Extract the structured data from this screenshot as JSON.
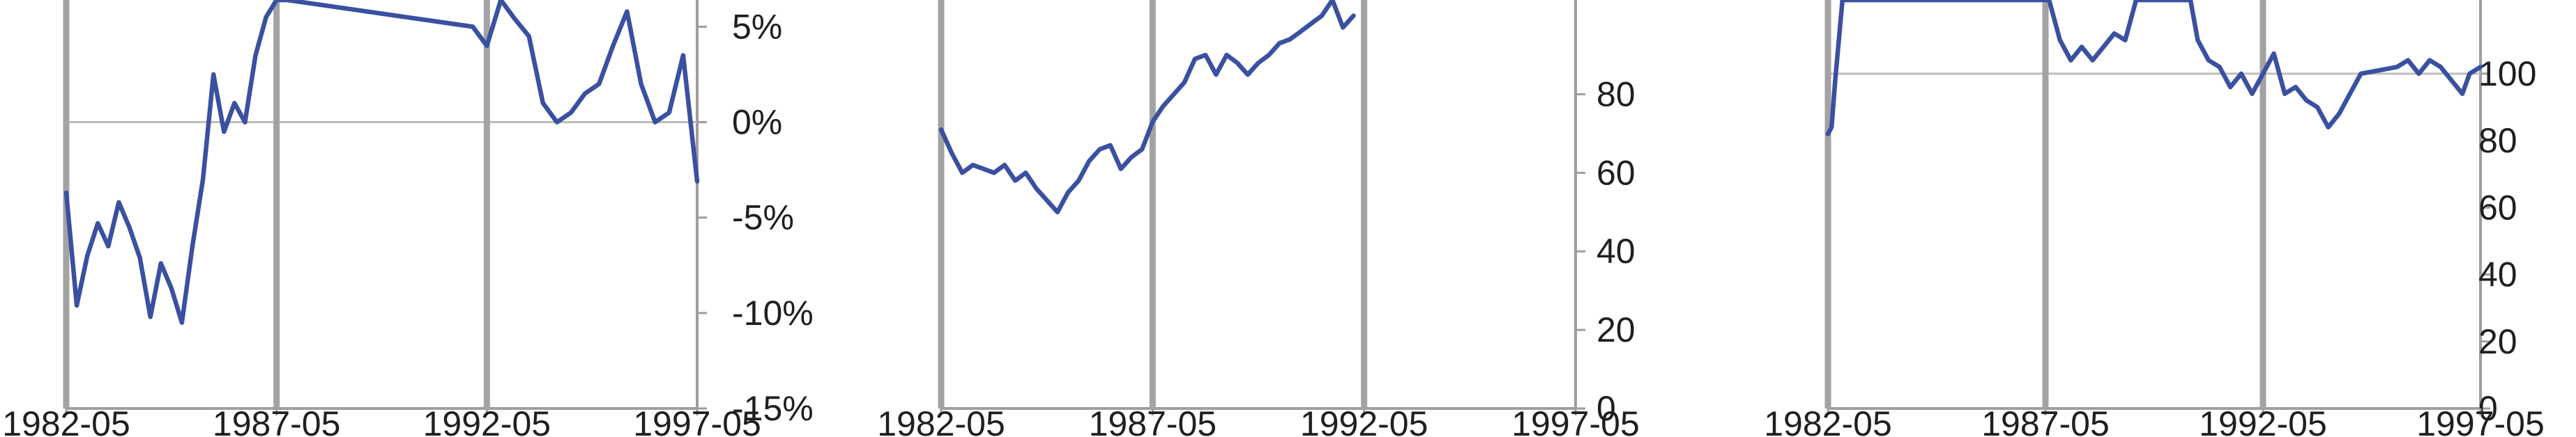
{
  "chart_data": [
    {
      "type": "line",
      "title": "",
      "xlabel": "",
      "ylabel": "",
      "x_ticks": [
        "1982-05",
        "1987-05",
        "1992-05",
        "1997-05"
      ],
      "x_range": [
        "1982-05",
        "1997-05"
      ],
      "y_axis_side": "right",
      "y_ticks": [
        -15,
        -10,
        -5,
        0,
        5
      ],
      "y_tick_labels": [
        "-15%",
        "-10%",
        "-5%",
        "0%",
        "5%"
      ],
      "ylim": [
        -15,
        6.4
      ],
      "grid": "horizontal line at 0%",
      "event_lines": [
        "1982-05",
        "1987-05",
        "1992-05"
      ],
      "series": [
        {
          "color": "#3a50a0",
          "x": [
            "1982-05",
            "1982-08",
            "1982-11",
            "1983-02",
            "1983-05",
            "1983-08",
            "1983-11",
            "1984-02",
            "1984-05",
            "1984-08",
            "1984-11",
            "1985-02",
            "1985-05",
            "1985-08",
            "1985-11",
            "1986-02",
            "1986-05",
            "1986-08",
            "1986-11",
            "1987-02",
            "1987-05",
            "1987-08",
            "1992-01",
            "1992-05",
            "1992-09",
            "1993-01",
            "1993-05",
            "1993-09",
            "1994-01",
            "1994-05",
            "1994-09",
            "1995-01",
            "1995-05",
            "1995-09",
            "1996-01",
            "1996-05",
            "1996-09",
            "1997-01",
            "1997-05"
          ],
          "y": [
            -3.7,
            -9.6,
            -7.0,
            -5.3,
            -6.5,
            -4.2,
            -5.5,
            -7.1,
            -10.2,
            -7.4,
            -8.7,
            -10.5,
            -6.5,
            -3.0,
            2.5,
            -0.5,
            1.0,
            0.0,
            3.5,
            5.5,
            6.4,
            6.4,
            5.0,
            4.0,
            6.4,
            5.4,
            4.5,
            1.0,
            0.0,
            0.5,
            1.5,
            2.0,
            4.0,
            5.8,
            2.0,
            0.0,
            0.5,
            3.5,
            -3.1
          ]
        }
      ]
    },
    {
      "type": "line",
      "title": "",
      "xlabel": "",
      "ylabel": "",
      "x_ticks": [
        "1982-05",
        "1987-05",
        "1992-05",
        "1997-05"
      ],
      "x_range": [
        "1982-05",
        "1997-05"
      ],
      "y_axis_side": "right",
      "y_ticks": [
        0,
        20,
        40,
        60,
        80
      ],
      "y_tick_labels": [
        "0",
        "20",
        "40",
        "60",
        "80"
      ],
      "ylim": [
        0,
        104
      ],
      "grid": "none",
      "event_lines": [
        "1982-05",
        "1987-05",
        "1992-05"
      ],
      "series": [
        {
          "color": "#3a50a0",
          "x": [
            "1982-05",
            "1982-08",
            "1982-11",
            "1983-02",
            "1983-05",
            "1983-08",
            "1983-11",
            "1984-02",
            "1984-05",
            "1984-08",
            "1984-11",
            "1985-02",
            "1985-05",
            "1985-08",
            "1985-11",
            "1986-02",
            "1986-05",
            "1986-08",
            "1986-11",
            "1987-02",
            "1987-05",
            "1987-08",
            "1987-11",
            "1988-02",
            "1988-05",
            "1988-08",
            "1988-11",
            "1989-02",
            "1989-05",
            "1989-08",
            "1989-11",
            "1990-02",
            "1990-05",
            "1990-08",
            "1990-11",
            "1991-02",
            "1991-05",
            "1991-08",
            "1991-11",
            "1992-02"
          ],
          "y": [
            71,
            65,
            60,
            62,
            61,
            60,
            62,
            58,
            60,
            56,
            53,
            50,
            55,
            58,
            63,
            66,
            67,
            61,
            64,
            66,
            73,
            77,
            80,
            83,
            89,
            90,
            85,
            90,
            88,
            85,
            88,
            90,
            93,
            94,
            96,
            98,
            100,
            104,
            97,
            100
          ]
        }
      ]
    },
    {
      "type": "line",
      "title": "",
      "xlabel": "",
      "ylabel": "",
      "x_ticks": [
        "1982-05",
        "1987-05",
        "1992-05",
        "1997-05"
      ],
      "x_range": [
        "1982-05",
        "1997-05"
      ],
      "y_axis_side": "right",
      "y_ticks": [
        0,
        20,
        40,
        60,
        80,
        100
      ],
      "y_tick_labels": [
        "0",
        "20",
        "40",
        "60",
        "80",
        "100"
      ],
      "ylim": [
        0,
        122
      ],
      "grid": "horizontal line at 100",
      "event_lines": [
        "1982-05",
        "1987-05",
        "1992-05"
      ],
      "series": [
        {
          "color": "#3a50a0",
          "x": [
            "1982-05",
            "1982-06",
            "1982-07",
            "1982-09",
            "1987-06",
            "1987-09",
            "1987-12",
            "1988-03",
            "1988-06",
            "1988-09",
            "1988-12",
            "1989-03",
            "1989-06",
            "1990-09",
            "1990-11",
            "1991-02",
            "1991-05",
            "1991-08",
            "1991-11",
            "1992-02",
            "1992-05",
            "1992-08",
            "1992-11",
            "1993-02",
            "1993-05",
            "1993-08",
            "1993-11",
            "1994-02",
            "1994-05",
            "1994-08",
            "1995-06",
            "1995-09",
            "1995-12",
            "1996-03",
            "1996-06",
            "1996-09",
            "1996-12",
            "1997-02",
            "1997-05"
          ],
          "y": [
            82,
            84,
            98,
            122,
            122,
            110,
            104,
            108,
            104,
            108,
            112,
            110,
            122,
            122,
            110,
            104,
            102,
            96,
            100,
            94,
            100,
            106,
            94,
            96,
            92,
            90,
            84,
            88,
            94,
            100,
            102,
            104,
            100,
            104,
            102,
            98,
            94,
            100,
            102
          ]
        }
      ]
    }
  ]
}
